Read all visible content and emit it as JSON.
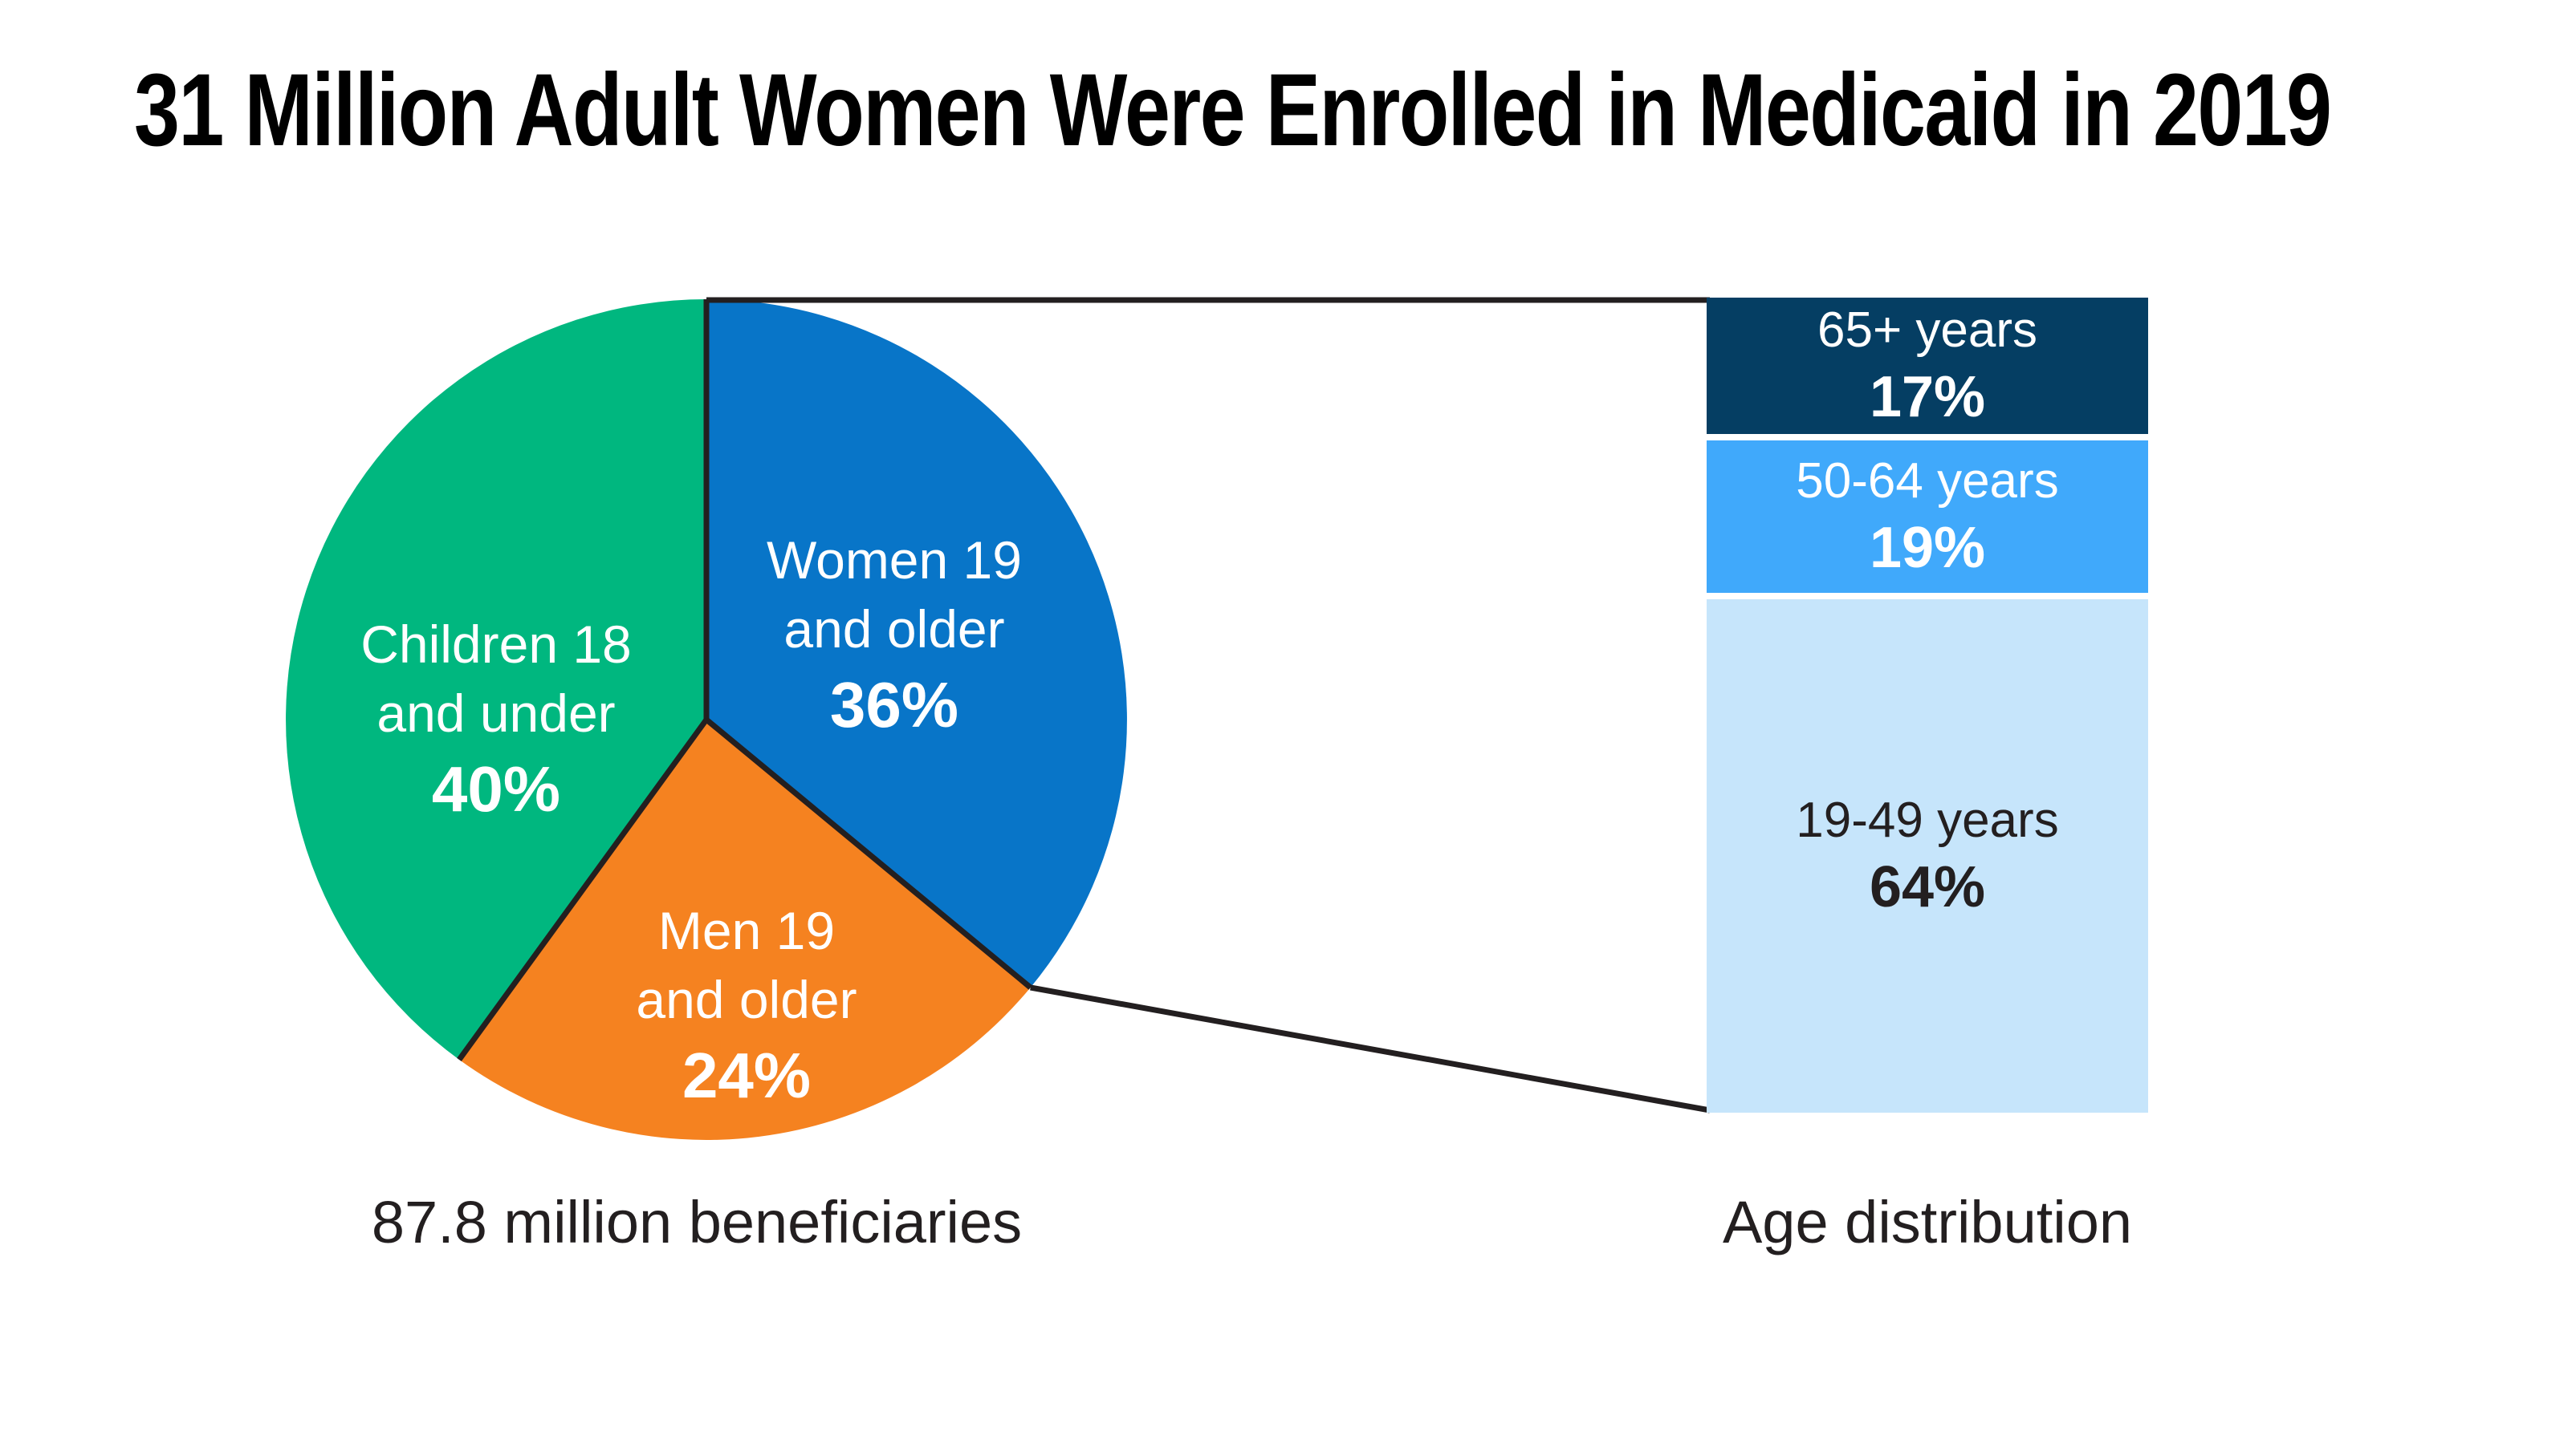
{
  "title": "31 Million Adult Women Were Enrolled in Medicaid in 2019",
  "colors": {
    "women_blue": "#0875C8",
    "men_orange": "#F58220",
    "children_green": "#00B77F",
    "age_65_navy": "#053E63",
    "age_50_64_blue": "#40A9FB",
    "age_19_49_lightblue": "#C6E5FB",
    "line_dark": "#231F20",
    "label_white": "#FFFFFF",
    "background": "#FFFFFF"
  },
  "pie": {
    "caption": "87.8 million beneficiaries",
    "slices": [
      {
        "label_lines": [
          "Women 19",
          "and older"
        ],
        "pct": 36,
        "pct_label": "36%",
        "color": "#0875C8",
        "text_color": "#FFFFFF"
      },
      {
        "label_lines": [
          "Men 19",
          "and older"
        ],
        "pct": 24,
        "pct_label": "24%",
        "color": "#F58220",
        "text_color": "#FFFFFF"
      },
      {
        "label_lines": [
          "Children 18",
          "and under"
        ],
        "pct": 40,
        "pct_label": "40%",
        "color": "#00B77F",
        "text_color": "#FFFFFF"
      }
    ]
  },
  "bar": {
    "caption": "Age distribution",
    "segments": [
      {
        "label": "65+ years",
        "pct": 17,
        "pct_label": "17%",
        "color": "#053E63",
        "text_color": "#FFFFFF"
      },
      {
        "label": "50-64 years",
        "pct": 19,
        "pct_label": "19%",
        "color": "#40A9FB",
        "text_color": "#FFFFFF"
      },
      {
        "label": "19-49 years",
        "pct": 64,
        "pct_label": "64%",
        "color": "#C6E5FB",
        "text_color": "#231F20"
      }
    ]
  },
  "chart_data": [
    {
      "type": "pie",
      "title": "31 Million Adult Women Were Enrolled in Medicaid in 2019",
      "caption": "87.8 million beneficiaries",
      "categories": [
        "Women 19 and older",
        "Men 19 and older",
        "Children 18 and under"
      ],
      "values": [
        36,
        24,
        40
      ],
      "unit": "percent",
      "start_angle": "12-oclock",
      "direction": "clockwise",
      "colors": [
        "#0875C8",
        "#F58220",
        "#00B77F"
      ],
      "legend_position": "labels-inside-slices"
    },
    {
      "type": "bar",
      "subtype": "stacked-single-column",
      "title": "Age distribution",
      "note": "Breakdown of the Women 19 and older slice, linked to the pie by two connector lines",
      "categories": [
        "65+ years",
        "50-64 years",
        "19-49 years"
      ],
      "values": [
        17,
        19,
        64
      ],
      "unit": "percent",
      "colors": [
        "#053E63",
        "#40A9FB",
        "#C6E5FB"
      ],
      "legend_position": "labels-inside-segments"
    }
  ]
}
